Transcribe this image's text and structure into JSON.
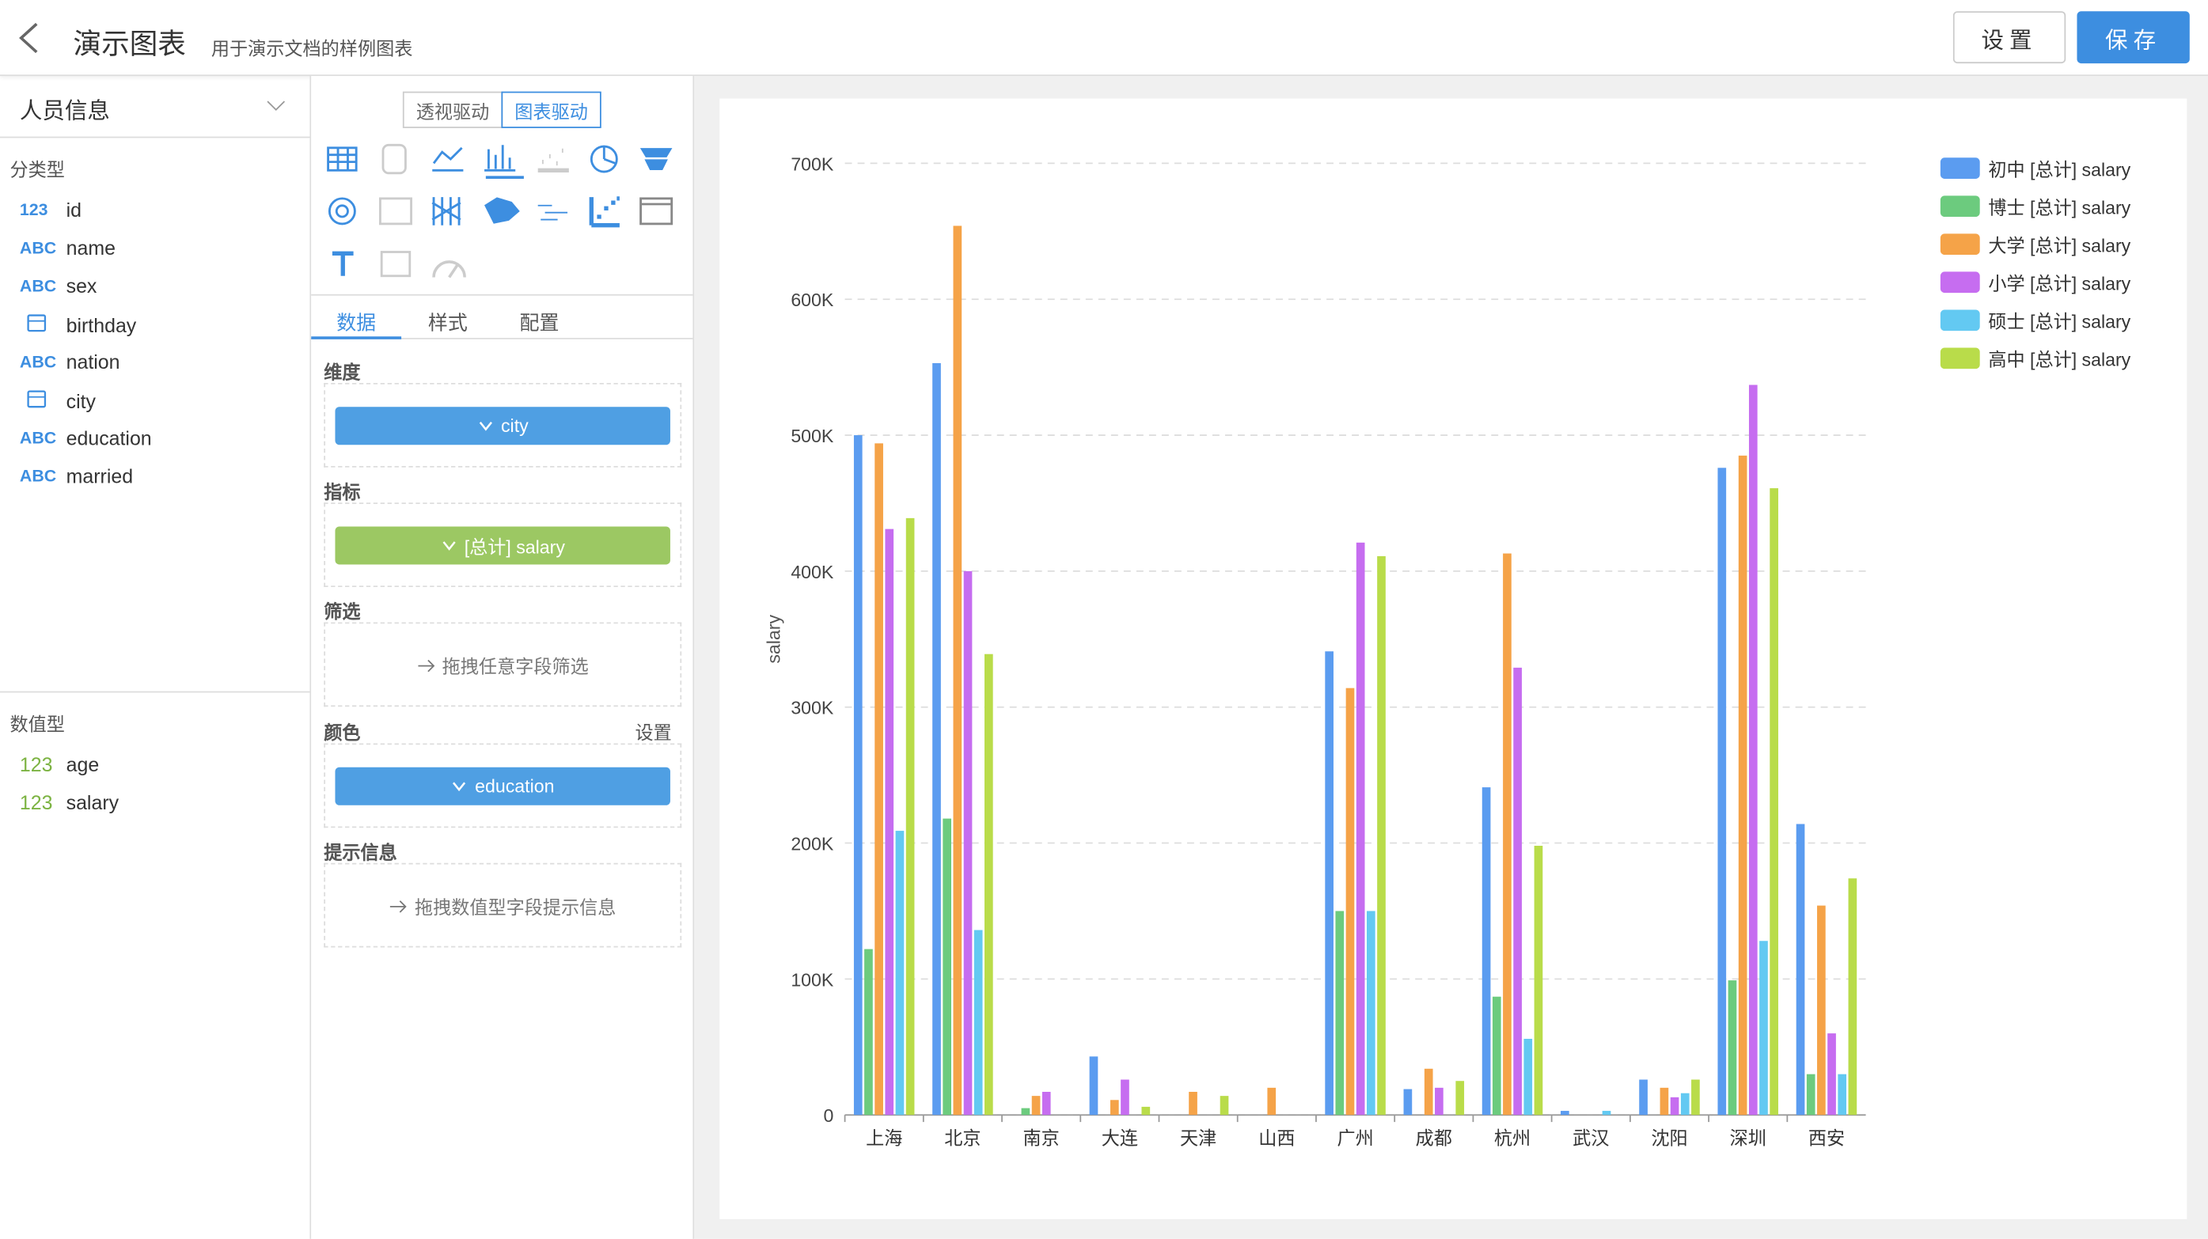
{
  "header": {
    "title": "演示图表",
    "subtitle": "用于演示文档的样例图表",
    "buttons": [
      "设置",
      "保存"
    ]
  },
  "dataset": {
    "name": "人员信息",
    "groups": [
      {
        "title": "分类型",
        "fields": [
          {
            "tag": "123",
            "name": "id"
          },
          {
            "tag": "ABC",
            "name": "name"
          },
          {
            "tag": "ABC",
            "name": "sex"
          },
          {
            "name": "birthday"
          },
          {
            "tag": "ABC",
            "name": "nation"
          },
          {
            "name": "city"
          },
          {
            "tag": "ABC",
            "name": "education"
          },
          {
            "tag": "ABC",
            "name": "married"
          }
        ]
      },
      {
        "title": "数值型",
        "fields": [
          {
            "tag": "123",
            "name": "age"
          },
          {
            "tag": "123",
            "name": "salary"
          }
        ]
      }
    ]
  },
  "panel": {
    "modes": [
      "透视驱动",
      "图表驱动"
    ],
    "tabs": [
      "数据",
      "样式",
      "配置"
    ],
    "sections": [
      {
        "title": "维度",
        "pill": "city",
        "pill_color": "#4f9fe3"
      },
      {
        "title": "指标",
        "pill": "[总计] salary",
        "pill_color": "#9cc863"
      },
      {
        "title": "筛选",
        "placeholder": "拖拽任意字段筛选"
      },
      {
        "title": "颜色",
        "action": "设置",
        "pill": "education",
        "pill_color": "#4f9fe3"
      },
      {
        "title": "提示信息",
        "placeholder": "拖拽数值型字段提示信息"
      }
    ]
  },
  "chart_data": {
    "type": "bar",
    "y_label": "salary",
    "legend": "top-right",
    "grid": true,
    "categories": [
      "上海",
      "北京",
      "南京",
      "大连",
      "天津",
      "山西",
      "广州",
      "成都",
      "杭州",
      "武汉",
      "沈阳",
      "深圳",
      "西安"
    ],
    "ylim": [
      0,
      700000
    ],
    "yticks": [
      0,
      {
        "value": 100000,
        "label": "100K"
      },
      {
        "value": 200000,
        "label": "200K"
      },
      {
        "value": 300000,
        "label": "300K"
      },
      {
        "value": 400000,
        "label": "400K"
      },
      {
        "value": 500000,
        "label": "500K"
      },
      {
        "value": 600000,
        "label": "600K"
      },
      {
        "value": 700000,
        "label": "700K"
      }
    ],
    "series": [
      {
        "name": "初中 [总计] salary",
        "color": "#5b9cf0",
        "values": [
          500000,
          553000,
          null,
          43000,
          null,
          null,
          341000,
          19000,
          241000,
          3000,
          26000,
          476000,
          214000
        ]
      },
      {
        "name": "博士 [总计] salary",
        "color": "#6ccb7e",
        "values": [
          122000,
          218000,
          5000,
          null,
          null,
          null,
          150000,
          null,
          87000,
          null,
          null,
          99000,
          30000
        ]
      },
      {
        "name": "大学 [总计] salary",
        "color": "#f5a348",
        "values": [
          494000,
          654000,
          14000,
          11000,
          17000,
          20000,
          314000,
          34000,
          413000,
          null,
          20000,
          485000,
          154000
        ]
      },
      {
        "name": "小学 [总计] salary",
        "color": "#c66df0",
        "values": [
          431000,
          400000,
          17000,
          26000,
          null,
          null,
          421000,
          20000,
          329000,
          null,
          13000,
          537000,
          60000
        ]
      },
      {
        "name": "硕士 [总计] salary",
        "color": "#63c9f2",
        "values": [
          209000,
          136000,
          null,
          null,
          null,
          null,
          150000,
          null,
          56000,
          3000,
          16000,
          128000,
          30000
        ]
      },
      {
        "name": "高中 [总计] salary",
        "color": "#b9dc4a",
        "values": [
          439000,
          339000,
          null,
          6000,
          14000,
          null,
          411000,
          25000,
          198000,
          null,
          26000,
          461000,
          174000
        ]
      }
    ]
  }
}
